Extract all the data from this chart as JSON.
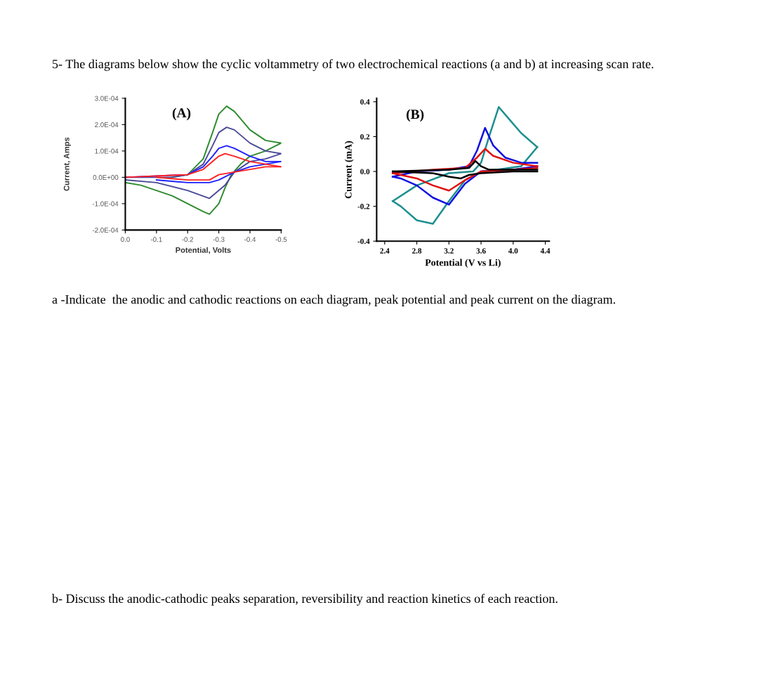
{
  "chart_data": [
    {
      "type": "line",
      "title": null,
      "xlabel": "Potential, Volts",
      "ylabel": "Current, Amps",
      "annotations": [
        "5- The diagrams below show the cyclic voltammetry of two electrochemical reactions (a and b) at increasing scan rate.",
        "(A)",
        "a -Indicate  the anodic and cathodic reactions on each diagram, peak potential and peak current on the diagram.",
        "b- Discuss the anodic-cathodic peaks separation, reversibility and reaction kinetics of each reaction."
      ],
      "xlim": [
        0,
        -0.5
      ],
      "xticks": [
        {
          "value": 0,
          "label": "0.0"
        },
        -0.1,
        -0.2,
        -0.3,
        -0.4,
        -0.5
      ],
      "ylim": [
        -0.0002,
        0.0003
      ],
      "yticks": [
        {
          "value": -0.0002,
          "label": "-2.0E-04"
        },
        {
          "value": -0.0001,
          "label": "-1.0E-04"
        },
        {
          "value": 0,
          "label": "0.0E+00"
        },
        {
          "value": 0.0001,
          "label": "1.0E-04"
        },
        {
          "value": 0.0002,
          "label": "2.0E-04"
        },
        {
          "value": 0.0003,
          "label": "3.0E-04"
        }
      ],
      "grid": false,
      "legend": false,
      "marker": "none",
      "line_style": "solid",
      "series": [
        {
          "color": "#2e8b2e",
          "x": [
            -0.15,
            -0.2,
            -0.25,
            -0.28,
            -0.3,
            -0.325,
            -0.35,
            -0.4,
            -0.45,
            -0.5
          ],
          "values": [
            0,
            1e-05,
            7e-05,
            0.00017,
            0.00024,
            0.00027,
            0.00025,
            0.00018,
            0.00014,
            0.00013
          ]
        },
        {
          "color": "#2e8b2e",
          "x": [
            -0.5,
            -0.45,
            -0.4,
            -0.37,
            -0.34,
            -0.32,
            -0.3,
            -0.27,
            -0.25,
            -0.2,
            -0.15,
            -0.1,
            -0.05,
            0
          ],
          "values": [
            0.00013,
            0.0001,
            8e-05,
            5e-05,
            1e-05,
            -4e-05,
            -0.0001,
            -0.00014,
            -0.00013,
            -0.0001,
            -7e-05,
            -5e-05,
            -3e-05,
            -2e-05
          ]
        },
        {
          "color": "#4a4a9a",
          "x": [
            0,
            -0.15,
            -0.2,
            -0.25,
            -0.28,
            -0.3,
            -0.325,
            -0.35,
            -0.4,
            -0.45,
            -0.5
          ],
          "values": [
            0,
            0,
            1e-05,
            5e-05,
            0.00012,
            0.00017,
            0.00019,
            0.00018,
            0.00013,
            0.0001,
            9e-05
          ]
        },
        {
          "color": "#4a4a9a",
          "x": [
            -0.5,
            -0.45,
            -0.4,
            -0.35,
            -0.32,
            -0.27,
            -0.2,
            -0.1,
            0
          ],
          "values": [
            9e-05,
            7e-05,
            6e-05,
            2e-05,
            -3e-05,
            -8e-05,
            -5e-05,
            -2e-05,
            -1e-05
          ]
        },
        {
          "color": "#2020ff",
          "x": [
            0,
            -0.2,
            -0.25,
            -0.28,
            -0.3,
            -0.325,
            -0.35,
            -0.4,
            -0.45,
            -0.5
          ],
          "values": [
            0,
            1e-05,
            4e-05,
            8e-05,
            0.00011,
            0.00012,
            0.00011,
            8e-05,
            6e-05,
            6e-05
          ]
        },
        {
          "color": "#2020ff",
          "x": [
            -0.5,
            -0.45,
            -0.4,
            -0.35,
            -0.3,
            -0.27,
            -0.2,
            -0.1
          ],
          "values": [
            6e-05,
            5e-05,
            4e-05,
            2e-05,
            -1e-05,
            -2e-05,
            -2e-05,
            -1e-05
          ]
        },
        {
          "color": "#ff2020",
          "x": [
            0,
            -0.2,
            -0.25,
            -0.3,
            -0.32,
            -0.35,
            -0.4,
            -0.45,
            -0.5
          ],
          "values": [
            0,
            1e-05,
            3e-05,
            8e-05,
            9e-05,
            8e-05,
            6e-05,
            5e-05,
            4e-05
          ]
        },
        {
          "color": "#ff2020",
          "x": [
            -0.5,
            -0.45,
            -0.4,
            -0.35,
            -0.3,
            -0.27,
            -0.2,
            -0.1
          ],
          "values": [
            4e-05,
            4e-05,
            3e-05,
            2e-05,
            1e-05,
            -1e-05,
            -1e-05,
            0
          ]
        }
      ]
    },
    {
      "type": "line",
      "xlabel": "Potential (V vs Li)",
      "ylabel": "Current (mA)",
      "annotations": [
        "(B)"
      ],
      "xlim": [
        2.3,
        4.45
      ],
      "xticks": [
        2.4,
        2.8,
        3.2,
        3.6,
        {
          "value": 4.0,
          "label": "4.0"
        },
        4.4
      ],
      "ylim": [
        -0.4,
        0.42
      ],
      "yticks": [
        -0.4,
        -0.2,
        {
          "value": 0,
          "label": "0.0"
        },
        0.2,
        0.4
      ],
      "grid": false,
      "legend": false,
      "marker": "none",
      "line_style": "solid",
      "series": [
        {
          "color": "#1e8f8f",
          "x": [
            2.5,
            2.8,
            3.2,
            3.5,
            3.6,
            3.7,
            3.82,
            3.95,
            4.1,
            4.3
          ],
          "values": [
            -0.17,
            -0.08,
            -0.01,
            0.0,
            0.05,
            0.2,
            0.37,
            0.3,
            0.22,
            0.14
          ]
        },
        {
          "color": "#1e8f8f",
          "x": [
            4.3,
            4.1,
            3.8,
            3.6,
            3.4,
            3.2,
            3.0,
            2.8,
            2.6,
            2.5
          ],
          "values": [
            0.14,
            0.03,
            0.01,
            0.0,
            -0.05,
            -0.17,
            -0.3,
            -0.28,
            -0.2,
            -0.17
          ]
        },
        {
          "color": "#1010e0",
          "x": [
            2.5,
            2.8,
            3.2,
            3.45,
            3.55,
            3.65,
            3.75,
            3.9,
            4.1,
            4.3
          ],
          "values": [
            -0.03,
            0.0,
            0.01,
            0.03,
            0.12,
            0.25,
            0.15,
            0.08,
            0.05,
            0.05
          ]
        },
        {
          "color": "#1010e0",
          "x": [
            4.3,
            4.0,
            3.6,
            3.4,
            3.2,
            3.0,
            2.8,
            2.6,
            2.5
          ],
          "values": [
            0.03,
            0.01,
            0.0,
            -0.07,
            -0.19,
            -0.15,
            -0.08,
            -0.04,
            -0.03
          ]
        },
        {
          "color": "#e01010",
          "x": [
            2.5,
            3.0,
            3.4,
            3.55,
            3.65,
            3.75,
            4.0,
            4.3
          ],
          "values": [
            -0.01,
            0.01,
            0.02,
            0.08,
            0.13,
            0.09,
            0.05,
            0.03
          ]
        },
        {
          "color": "#e01010",
          "x": [
            4.3,
            4.0,
            3.6,
            3.4,
            3.2,
            3.0,
            2.8,
            2.6,
            2.5
          ],
          "values": [
            0.02,
            0.01,
            0.0,
            -0.05,
            -0.11,
            -0.08,
            -0.04,
            -0.02,
            -0.01
          ]
        },
        {
          "color": "#000000",
          "x": [
            2.5,
            3.2,
            3.45,
            3.53,
            3.6,
            3.7,
            4.0,
            4.3
          ],
          "values": [
            0.0,
            0.01,
            0.02,
            0.06,
            0.03,
            0.01,
            0.01,
            0.01
          ]
        },
        {
          "color": "#000000",
          "x": [
            4.3,
            4.0,
            3.6,
            3.45,
            3.35,
            3.2,
            3.0,
            2.5
          ],
          "values": [
            0.0,
            0.0,
            -0.01,
            -0.02,
            -0.04,
            -0.03,
            -0.01,
            0.0
          ]
        }
      ]
    }
  ]
}
